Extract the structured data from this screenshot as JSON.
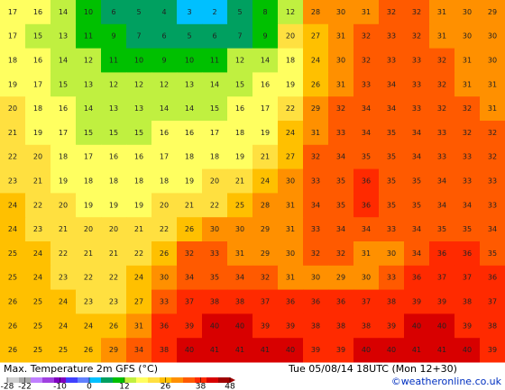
{
  "map": {
    "title": "Max. Temperature 2m GFS (°C)",
    "valid_time": "Tue 05/08/14 18UTC (Mon 12+30)",
    "credit": "©weatheronline.co.uk",
    "grid_values": [
      [
        17,
        16,
        14,
        10,
        6,
        5,
        4,
        3,
        2,
        5,
        8,
        12,
        28,
        30,
        31,
        32,
        32,
        31,
        30,
        29
      ],
      [
        17,
        15,
        13,
        11,
        9,
        7,
        6,
        5,
        6,
        7,
        9,
        20,
        27,
        31,
        32,
        33,
        32,
        31,
        30,
        30
      ],
      [
        18,
        16,
        14,
        12,
        11,
        10,
        9,
        10,
        11,
        12,
        14,
        18,
        24,
        30,
        32,
        33,
        33,
        32,
        31,
        30
      ],
      [
        19,
        17,
        15,
        13,
        12,
        12,
        12,
        13,
        14,
        15,
        16,
        19,
        26,
        31,
        33,
        34,
        33,
        32,
        31,
        31
      ],
      [
        20,
        18,
        16,
        14,
        13,
        13,
        14,
        14,
        15,
        16,
        17,
        22,
        29,
        32,
        34,
        34,
        33,
        32,
        32,
        31
      ],
      [
        21,
        19,
        17,
        15,
        15,
        15,
        16,
        16,
        17,
        18,
        19,
        24,
        31,
        33,
        34,
        35,
        34,
        33,
        32,
        32
      ],
      [
        22,
        20,
        18,
        17,
        16,
        16,
        17,
        18,
        18,
        19,
        21,
        27,
        32,
        34,
        35,
        35,
        34,
        33,
        33,
        32
      ],
      [
        23,
        21,
        19,
        18,
        18,
        18,
        18,
        19,
        20,
        21,
        24,
        30,
        33,
        35,
        36,
        35,
        35,
        34,
        33,
        33
      ],
      [
        24,
        22,
        20,
        19,
        19,
        19,
        20,
        21,
        22,
        25,
        28,
        31,
        34,
        35,
        36,
        35,
        35,
        34,
        34,
        33
      ],
      [
        24,
        23,
        21,
        20,
        20,
        21,
        22,
        26,
        30,
        30,
        29,
        31,
        33,
        34,
        34,
        33,
        34,
        35,
        35,
        34
      ],
      [
        25,
        24,
        22,
        21,
        21,
        22,
        26,
        32,
        33,
        31,
        29,
        30,
        32,
        32,
        31,
        30,
        34,
        36,
        36,
        35
      ],
      [
        25,
        24,
        23,
        22,
        22,
        24,
        30,
        34,
        35,
        34,
        32,
        31,
        30,
        29,
        30,
        33,
        36,
        37,
        37,
        36
      ],
      [
        26,
        25,
        24,
        23,
        23,
        27,
        33,
        37,
        38,
        38,
        37,
        36,
        36,
        36,
        37,
        38,
        39,
        39,
        38,
        37
      ],
      [
        26,
        25,
        24,
        24,
        26,
        31,
        36,
        39,
        40,
        40,
        39,
        39,
        38,
        38,
        38,
        39,
        40,
        40,
        39,
        38
      ],
      [
        26,
        25,
        25,
        26,
        29,
        34,
        38,
        40,
        41,
        41,
        41,
        40,
        39,
        39,
        40,
        40,
        41,
        41,
        40,
        39
      ]
    ],
    "colorbar": {
      "ticks": [
        -28,
        -22,
        -10,
        0,
        12,
        26,
        38,
        48
      ],
      "colors": [
        "#d0d0d0",
        "#a8a8a8",
        "#c080ff",
        "#a040e0",
        "#8000c0",
        "#4040ff",
        "#6080ff",
        "#00c0ff",
        "#00a060",
        "#00c000",
        "#c0f040",
        "#ffff60",
        "#ffe040",
        "#ffc000",
        "#ff9000",
        "#ff5a00",
        "#ff2a00",
        "#d80000",
        "#a00000"
      ]
    }
  }
}
